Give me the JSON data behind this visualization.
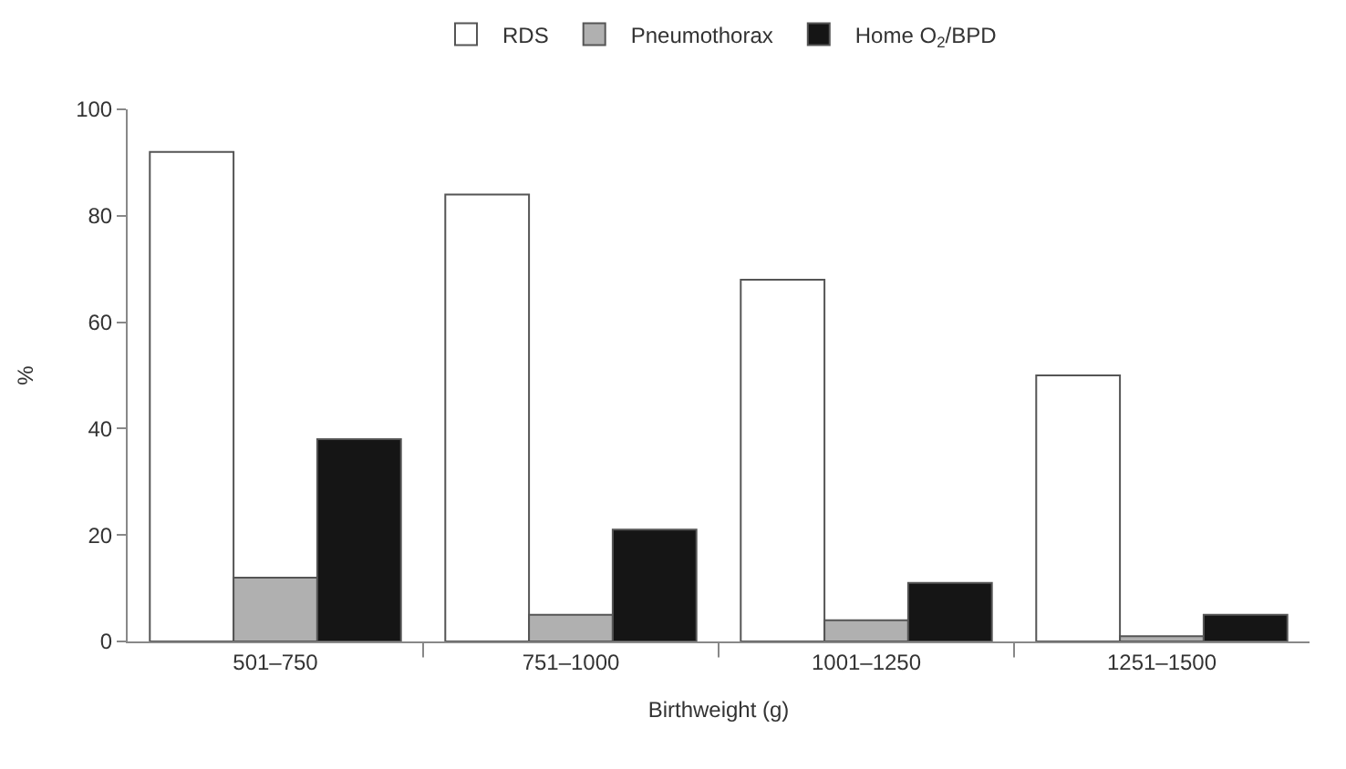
{
  "chart_data": {
    "type": "bar",
    "xlabel": "Birthweight (g)",
    "ylabel": "%",
    "categories": [
      "501–750",
      "751–1000",
      "1001–1250",
      "1251–1500"
    ],
    "series": [
      {
        "name": "RDS",
        "color": "#ffffff",
        "values": [
          92,
          84,
          68,
          50
        ]
      },
      {
        "name": "Pneumothorax",
        "color": "#b0b0b0",
        "values": [
          12,
          5,
          4,
          1
        ]
      },
      {
        "name": "Home O$_{2}$/BPD",
        "color": "#151515",
        "values": [
          38,
          21,
          11,
          5
        ]
      }
    ],
    "ylim": [
      0,
      100
    ],
    "yticks": [
      0,
      20,
      40,
      60,
      80,
      100
    ],
    "legend": "top"
  }
}
